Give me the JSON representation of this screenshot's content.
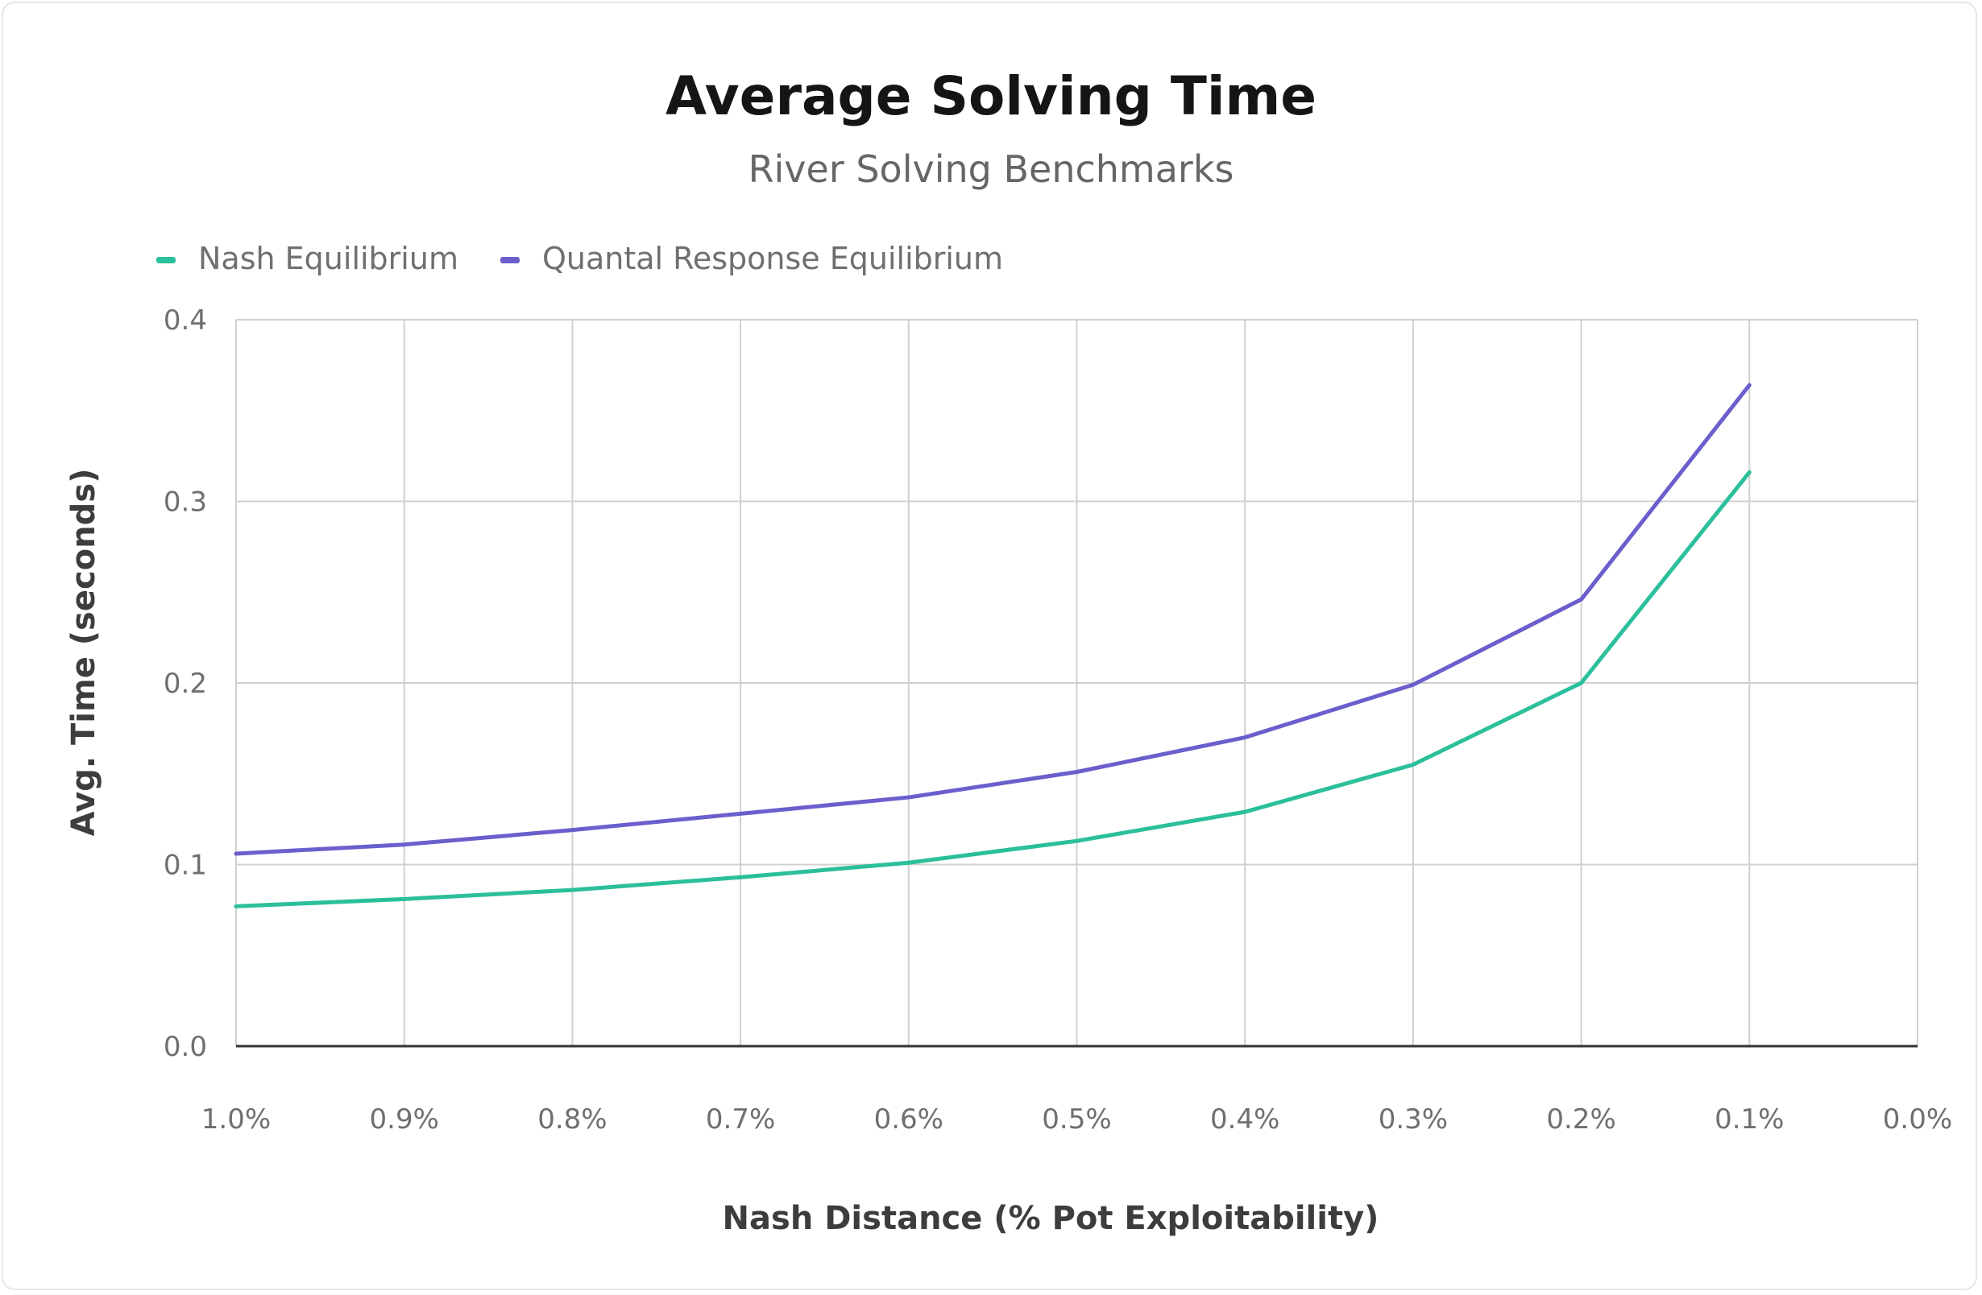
{
  "chart_data": {
    "type": "line",
    "title": "Average Solving Time",
    "subtitle": "River Solving Benchmarks",
    "xlabel": "Nash Distance (% Pot Exploitability)",
    "ylabel": "Avg. Time (seconds)",
    "x_tick_labels": [
      "1.0%",
      "0.9%",
      "0.8%",
      "0.7%",
      "0.6%",
      "0.5%",
      "0.4%",
      "0.3%",
      "0.2%",
      "0.1%",
      "0.0%"
    ],
    "y_tick_labels": [
      "0.0",
      "0.1",
      "0.2",
      "0.3",
      "0.4"
    ],
    "x": [
      1.0,
      0.9,
      0.8,
      0.7,
      0.6,
      0.5,
      0.4,
      0.3,
      0.2,
      0.1
    ],
    "xlim": [
      1.0,
      0.0
    ],
    "ylim": [
      0,
      0.4
    ],
    "grid": true,
    "legend_position": "top-left",
    "series": [
      {
        "name": "Nash Equilibrium",
        "color": "#2bbf9b",
        "values": [
          0.077,
          0.081,
          0.086,
          0.093,
          0.101,
          0.113,
          0.129,
          0.155,
          0.2,
          0.316
        ]
      },
      {
        "name": "Quantal Response Equilibrium",
        "color": "#6a5fcc",
        "values": [
          0.106,
          0.111,
          0.119,
          0.128,
          0.137,
          0.151,
          0.17,
          0.199,
          0.246,
          0.364
        ]
      }
    ]
  }
}
